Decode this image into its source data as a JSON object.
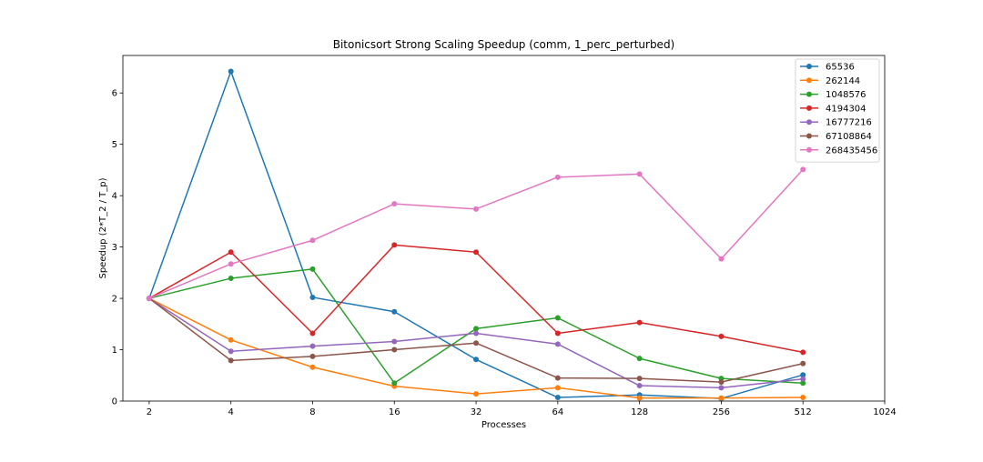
{
  "chart_data": {
    "type": "line",
    "title": "Bitonicsort Strong Scaling Speedup (comm, 1_perc_perturbed)",
    "xlabel": "Processes",
    "ylabel": "Speedup (2*T_2 / T_p)",
    "x_scale": "log2",
    "x": [
      2,
      4,
      8,
      16,
      32,
      64,
      128,
      256,
      512
    ],
    "x_ticks": [
      2,
      4,
      8,
      16,
      32,
      64,
      128,
      256,
      512,
      1024
    ],
    "x_tick_labels": [
      "2",
      "4",
      "8",
      "16",
      "32",
      "64",
      "128",
      "256",
      "512",
      "1024"
    ],
    "xlim": [
      1.6,
      1024
    ],
    "y_ticks": [
      0,
      1,
      2,
      3,
      4,
      5,
      6
    ],
    "y_tick_labels": [
      "0",
      "1",
      "2",
      "3",
      "4",
      "5",
      "6"
    ],
    "ylim": [
      0,
      6.73
    ],
    "grid": false,
    "legend_position": "top-right",
    "marker": "circle",
    "series": [
      {
        "name": "65536",
        "color": "#1f77b4",
        "values": [
          2.0,
          6.42,
          2.02,
          1.74,
          0.81,
          0.07,
          0.12,
          0.05,
          0.51
        ]
      },
      {
        "name": "262144",
        "color": "#ff7f0e",
        "values": [
          2.0,
          1.19,
          0.66,
          0.29,
          0.14,
          0.26,
          0.06,
          0.06,
          0.07
        ]
      },
      {
        "name": "1048576",
        "color": "#2ca02c",
        "values": [
          2.0,
          2.39,
          2.57,
          0.35,
          1.41,
          1.62,
          0.83,
          0.44,
          0.35
        ]
      },
      {
        "name": "4194304",
        "color": "#d62728",
        "values": [
          2.0,
          2.9,
          1.32,
          3.04,
          2.9,
          1.32,
          1.53,
          1.26,
          0.95
        ]
      },
      {
        "name": "16777216",
        "color": "#9467bd",
        "values": [
          2.0,
          0.97,
          1.07,
          1.16,
          1.32,
          1.11,
          0.3,
          0.26,
          0.43
        ]
      },
      {
        "name": "67108864",
        "color": "#8c564b",
        "values": [
          2.0,
          0.79,
          0.87,
          1.0,
          1.13,
          0.45,
          0.44,
          0.37,
          0.73
        ]
      },
      {
        "name": "268435456",
        "color": "#e377c2",
        "values": [
          2.0,
          2.67,
          3.13,
          3.84,
          3.74,
          4.36,
          4.42,
          2.77,
          4.51
        ]
      }
    ]
  }
}
